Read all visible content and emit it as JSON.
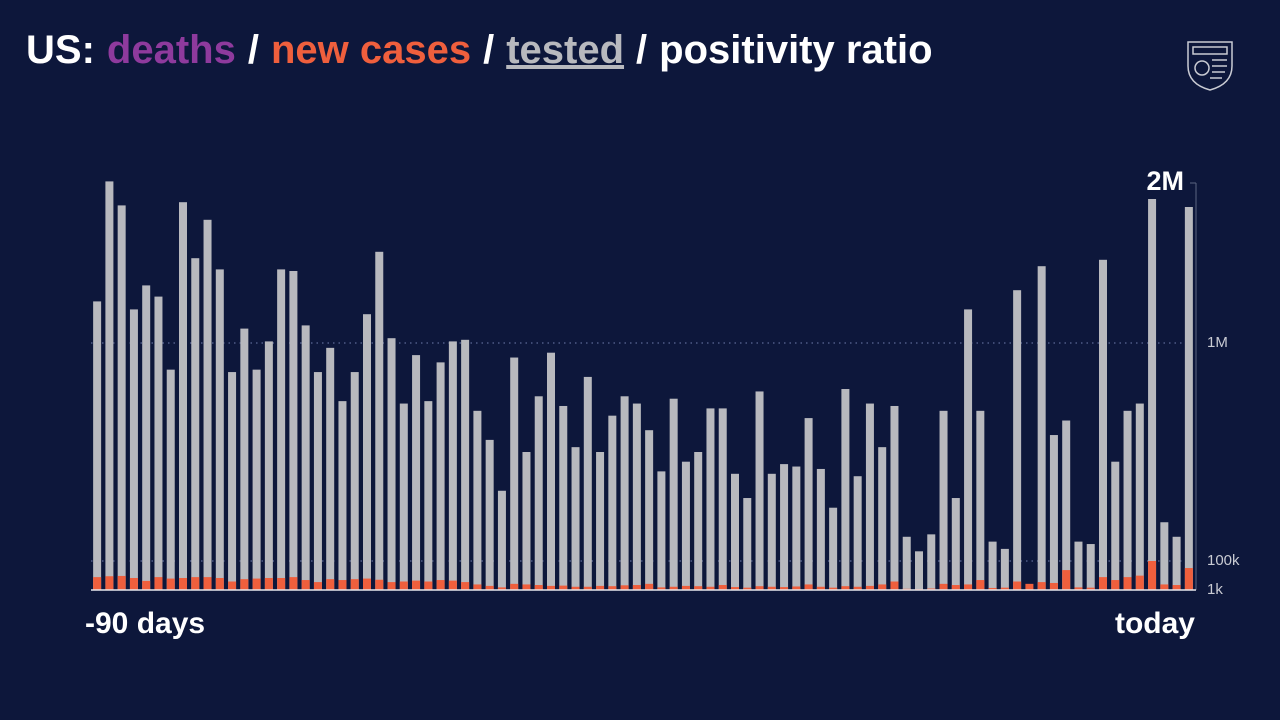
{
  "chart_data": {
    "type": "bar",
    "title": {
      "prefix": "US:",
      "separator": "/",
      "lead": {
        "text": "deaths",
        "color": "#8e3a9d"
      },
      "tail": {
        "text": "positivity ratio",
        "color": "#ffffff"
      }
    },
    "categories": [
      "-90 days",
      null,
      null,
      null,
      null,
      null,
      null,
      null,
      null,
      null,
      null,
      null,
      null,
      null,
      null,
      null,
      null,
      null,
      null,
      null,
      null,
      null,
      null,
      null,
      null,
      null,
      null,
      null,
      null,
      null,
      null,
      null,
      null,
      null,
      null,
      null,
      null,
      null,
      null,
      null,
      null,
      null,
      null,
      null,
      null,
      null,
      null,
      null,
      null,
      null,
      null,
      null,
      null,
      null,
      null,
      null,
      null,
      null,
      null,
      null,
      null,
      null,
      null,
      null,
      null,
      null,
      null,
      null,
      null,
      null,
      null,
      null,
      null,
      null,
      null,
      null,
      null,
      null,
      null,
      null,
      null,
      null,
      null,
      null,
      null,
      null,
      null,
      null,
      null,
      "today"
    ],
    "series": [
      {
        "name": "new cases",
        "color": "#ef5f3d",
        "values": [
          45000,
          48000,
          49000,
          42000,
          32000,
          45000,
          40000,
          42000,
          45000,
          45000,
          42000,
          30000,
          38000,
          40000,
          42000,
          42000,
          45000,
          35000,
          28000,
          38000,
          35000,
          38000,
          40000,
          36000,
          28000,
          30000,
          33000,
          30000,
          35000,
          33000,
          28000,
          20000,
          15000,
          10000,
          22000,
          20000,
          18000,
          15000,
          16000,
          12000,
          12000,
          15000,
          14000,
          17000,
          18000,
          22000,
          10000,
          12000,
          15000,
          14000,
          12000,
          18000,
          11000,
          9000,
          14000,
          12000,
          11000,
          13000,
          20000,
          12000,
          9000,
          14000,
          12000,
          15000,
          20000,
          30000,
          5000,
          4000,
          6000,
          22000,
          18000,
          20000,
          35000,
          8000,
          9000,
          30000,
          22000,
          28000,
          25000,
          69000,
          10000,
          9000,
          45000,
          35000,
          45000,
          50000,
          100000,
          20000,
          18000,
          76000
        ]
      },
      {
        "name": "tested",
        "color": "#b8b9be",
        "values": [
          1260000,
          2010000,
          1860000,
          1210000,
          1360000,
          1290000,
          890000,
          1880000,
          1530000,
          1770000,
          1460000,
          880000,
          1090000,
          890000,
          1010000,
          1460000,
          1450000,
          1110000,
          880000,
          980000,
          760000,
          880000,
          1180000,
          1570000,
          1030000,
          750000,
          950000,
          760000,
          920000,
          1010000,
          1020000,
          720000,
          600000,
          390000,
          940000,
          550000,
          780000,
          960000,
          740000,
          570000,
          860000,
          550000,
          700000,
          780000,
          750000,
          640000,
          470000,
          770000,
          510000,
          550000,
          730000,
          730000,
          460000,
          360000,
          800000,
          460000,
          500000,
          490000,
          690000,
          480000,
          320000,
          810000,
          450000,
          750000,
          570000,
          740000,
          200000,
          140000,
          210000,
          720000,
          360000,
          1210000,
          720000,
          180000,
          150000,
          1330000,
          null,
          1480000,
          620000,
          680000,
          180000,
          170000,
          1520000,
          510000,
          720000,
          750000,
          1900000,
          260000,
          200000,
          1850000
        ]
      }
    ],
    "ylim": [
      1000,
      2000000
    ],
    "yticks": [
      {
        "value": 1000,
        "label": "1k"
      },
      {
        "value": 100000,
        "label": "100k"
      },
      {
        "value": 1000000,
        "label": "1M"
      },
      {
        "value": 2000000,
        "label": "2M"
      }
    ],
    "grid": true
  }
}
